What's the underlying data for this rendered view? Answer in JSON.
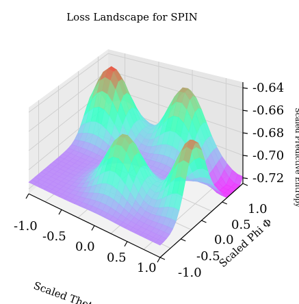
{
  "chart_data": {
    "type": "surface",
    "title": "Loss Landscape for SPIN",
    "xlabel": "Scaled Theta θ",
    "ylabel": "Scaled Phi Φ",
    "zlabel": "Scaled Predictive Entropy",
    "xlim": [
      -1.0,
      1.0
    ],
    "ylim": [
      -1.0,
      1.0
    ],
    "zlim": [
      -0.725,
      -0.635
    ],
    "x_ticks": [
      "-1.0",
      "-0.5",
      "0.0",
      "0.5",
      "1.0"
    ],
    "y_ticks": [
      "-1.0",
      "-0.5",
      "0.0",
      "0.5",
      "1.0"
    ],
    "z_ticks": [
      "-0.64",
      "-0.66",
      "-0.68",
      "-0.70",
      "-0.72"
    ],
    "z_tick_values": [
      -0.64,
      -0.66,
      -0.68,
      -0.7,
      -0.72
    ],
    "colormap": "rainbow",
    "grid": true,
    "surface_peaks": [
      {
        "theta": -0.75,
        "phi": 0.65,
        "z": -0.638
      },
      {
        "theta": 0.05,
        "phi": -0.35,
        "z": -0.655
      },
      {
        "theta": 0.2,
        "phi": 0.9,
        "z": -0.65
      },
      {
        "theta": 0.95,
        "phi": -0.15,
        "z": -0.645
      }
    ],
    "surface_minimum": {
      "theta": 0.95,
      "phi": 0.75,
      "z": -0.722
    }
  }
}
